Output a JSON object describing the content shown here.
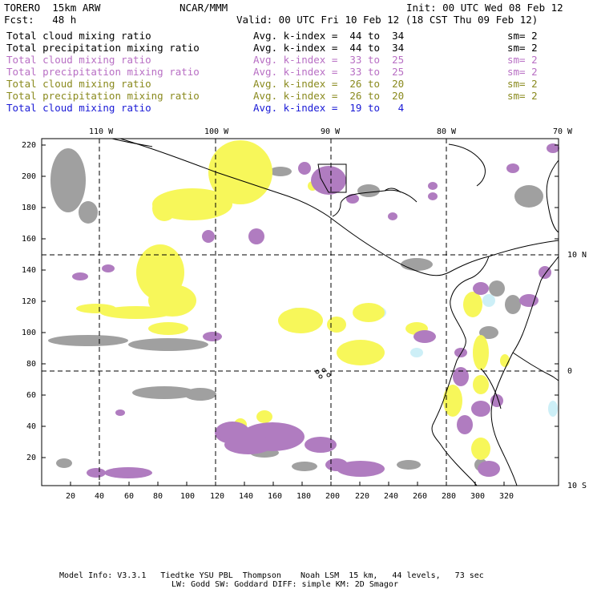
{
  "header": {
    "model": "TORERO  15km ARW",
    "center": "NCAR/MMM",
    "init": "Init: 00 UTC Wed 08 Feb 12",
    "fcst": "Fcst:   48 h",
    "valid": "Valid: 00 UTC Fri 10 Feb 12 (18 CST Thu 09 Feb 12)"
  },
  "legend": [
    {
      "field": "Total cloud mixing ratio",
      "kindex": "Avg. k-index =  44 to  34",
      "sm": "sm= 2",
      "color": "#000000"
    },
    {
      "field": "Total precipitation mixing ratio",
      "kindex": "Avg. k-index =  44 to  34",
      "sm": "sm= 2",
      "color": "#000000"
    },
    {
      "field": "Total cloud mixing ratio",
      "kindex": "Avg. k-index =  33 to  25",
      "sm": "sm= 2",
      "color": "#b86fc4"
    },
    {
      "field": "Total precipitation mixing ratio",
      "kindex": "Avg. k-index =  33 to  25",
      "sm": "sm= 2",
      "color": "#b86fc4"
    },
    {
      "field": "Total cloud mixing ratio",
      "kindex": "Avg. k-index =  26 to  20",
      "sm": "sm= 2",
      "color": "#8a8a1e"
    },
    {
      "field": "Total precipitation mixing ratio",
      "kindex": "Avg. k-index =  26 to  20",
      "sm": "sm= 2",
      "color": "#8a8a1e"
    },
    {
      "field": "Total cloud mixing ratio",
      "kindex": "Avg. k-index =  19 to   4",
      "sm": "",
      "color": "#1a1ad6"
    }
  ],
  "axes": {
    "lon_labels": [
      "110 W",
      "100 W",
      "90 W",
      "80 W",
      "70 W"
    ],
    "lat_labels": [
      "10 N",
      "0",
      "10 S"
    ],
    "y_ticks": [
      "220",
      "200",
      "180",
      "160",
      "140",
      "120",
      "100",
      "80",
      "60",
      "40",
      "20"
    ],
    "x_ticks": [
      "20",
      "40",
      "60",
      "80",
      "100",
      "120",
      "140",
      "160",
      "180",
      "200",
      "220",
      "240",
      "260",
      "280",
      "300",
      "320"
    ]
  },
  "fill_colors": {
    "gray": "#a0a0a0",
    "purple": "#b07cc0",
    "yellow": "#f7f75a",
    "light_blue": "#cdeff7"
  },
  "footer": {
    "line1": "Model Info: V3.3.1   Tiedtke YSU PBL  Thompson    Noah LSM  15 km,   44 levels,   73 sec",
    "line2": "LW: Godd SW: Goddard DIFF: simple KM: 2D Smagor"
  }
}
